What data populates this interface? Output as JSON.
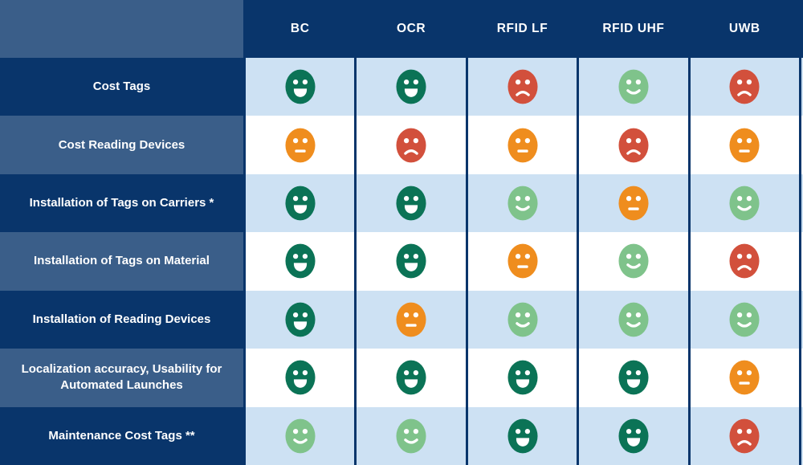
{
  "chart_data": {
    "type": "table",
    "title": "Technology comparison matrix (smiley ratings)",
    "columns": [
      "BC",
      "OCR",
      "RFID LF",
      "RFID UHF",
      "UWB"
    ],
    "rating_scale": [
      "very-good",
      "good",
      "neutral",
      "bad"
    ],
    "rows": [
      {
        "label": "Cost Tags",
        "ratings": [
          "very-good",
          "very-good",
          "bad",
          "good",
          "bad"
        ]
      },
      {
        "label": "Cost Reading Devices",
        "ratings": [
          "neutral",
          "bad",
          "neutral",
          "bad",
          "neutral"
        ]
      },
      {
        "label": "Installation of Tags on Carriers *",
        "ratings": [
          "very-good",
          "very-good",
          "good",
          "neutral",
          "good"
        ]
      },
      {
        "label": "Installation of Tags on Material",
        "ratings": [
          "very-good",
          "very-good",
          "neutral",
          "good",
          "bad"
        ]
      },
      {
        "label": "Installation of Reading Devices",
        "ratings": [
          "very-good",
          "neutral",
          "good",
          "good",
          "good"
        ]
      },
      {
        "label": "Localization accuracy, Usability for Automated Launches",
        "ratings": [
          "very-good",
          "very-good",
          "very-good",
          "very-good",
          "neutral"
        ]
      },
      {
        "label": "Maintenance Cost Tags **",
        "ratings": [
          "good",
          "good",
          "very-good",
          "very-good",
          "bad"
        ]
      }
    ],
    "rating_colors": {
      "very-good": "#0B7356",
      "good": "#7FC38B",
      "neutral": "#EF8D1E",
      "bad": "#D2503C"
    },
    "icon_names": {
      "very-good": "face-grin-icon",
      "good": "face-smile-icon",
      "neutral": "face-neutral-icon",
      "bad": "face-frown-icon"
    },
    "layout_colors": {
      "navy": "#09356B",
      "medium_blue": "#3A5E89",
      "light_blue": "#CDE1F3",
      "white": "#FFFFFF"
    }
  }
}
